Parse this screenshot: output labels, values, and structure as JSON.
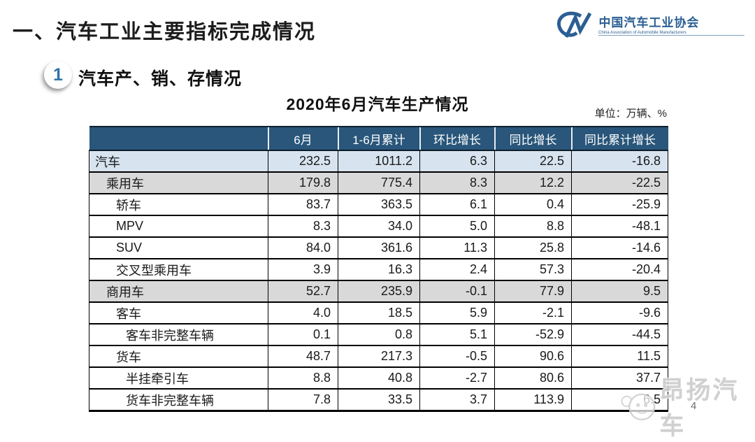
{
  "slide": {
    "title": "一、汽车工业主要指标完成情况",
    "section_number": "1",
    "section_title": "汽车产、销、存情况",
    "page_number": "4"
  },
  "logo": {
    "mark": "CM",
    "name_cn": "中国汽车工业协会",
    "name_en": "China Association of Automobile Manufacturers"
  },
  "table": {
    "title": "2020年6月汽车生产情况",
    "unit_label": "单位：万辆、%",
    "columns": [
      "",
      "6月",
      "1-6月累计",
      "环比增长",
      "同比增长",
      "同比累计增长"
    ],
    "rows": [
      {
        "label": "汽车",
        "indent": 0,
        "bg": "blue",
        "values": [
          "232.5",
          "1011.2",
          "6.3",
          "22.5",
          "-16.8"
        ]
      },
      {
        "label": "乘用车",
        "indent": 1,
        "bg": "gray",
        "values": [
          "179.8",
          "775.4",
          "8.3",
          "12.2",
          "-22.5"
        ]
      },
      {
        "label": "轿车",
        "indent": 2,
        "bg": "white",
        "values": [
          "83.7",
          "363.5",
          "6.1",
          "0.4",
          "-25.9"
        ]
      },
      {
        "label": "MPV",
        "indent": 2,
        "bg": "white",
        "values": [
          "8.3",
          "34.0",
          "5.0",
          "8.8",
          "-48.1"
        ]
      },
      {
        "label": "SUV",
        "indent": 2,
        "bg": "white",
        "values": [
          "84.0",
          "361.6",
          "11.3",
          "25.8",
          "-14.6"
        ]
      },
      {
        "label": "交叉型乘用车",
        "indent": 2,
        "bg": "white",
        "values": [
          "3.9",
          "16.3",
          "2.4",
          "57.3",
          "-20.4"
        ]
      },
      {
        "label": "商用车",
        "indent": 1,
        "bg": "gray",
        "values": [
          "52.7",
          "235.9",
          "-0.1",
          "77.9",
          "9.5"
        ]
      },
      {
        "label": "客车",
        "indent": 2,
        "bg": "white",
        "values": [
          "4.0",
          "18.5",
          "5.9",
          "-2.1",
          "-9.6"
        ]
      },
      {
        "label": "客车非完整车辆",
        "indent": 3,
        "bg": "white",
        "values": [
          "0.1",
          "0.8",
          "5.1",
          "-52.9",
          "-44.5"
        ]
      },
      {
        "label": "货车",
        "indent": 2,
        "bg": "white",
        "values": [
          "48.7",
          "217.3",
          "-0.5",
          "90.6",
          "11.5"
        ]
      },
      {
        "label": "半挂牵引车",
        "indent": 3,
        "bg": "white",
        "values": [
          "8.8",
          "40.8",
          "-2.7",
          "80.6",
          "37.7"
        ]
      },
      {
        "label": "货车非完整车辆",
        "indent": 3,
        "bg": "white",
        "values": [
          "7.8",
          "33.5",
          "3.7",
          "113.9",
          "6.5"
        ]
      }
    ]
  },
  "watermark": {
    "text": "昂扬汽车"
  },
  "colors": {
    "header_blue": "#29567a",
    "row_blue": "#d7e4f0",
    "row_gray": "#d9d9d9",
    "logo_blue": "#2b5f93",
    "watermark_gray": "#cdcdcd"
  }
}
